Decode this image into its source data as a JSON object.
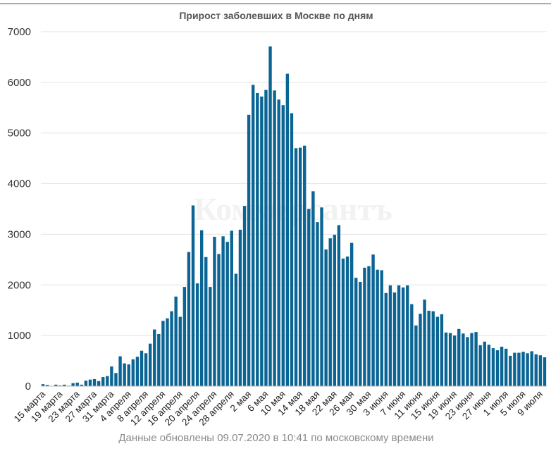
{
  "chart_data": {
    "type": "bar",
    "title": "Прирост заболевших в Москве по дням",
    "footer": "Данные обновлены 09.07.2020 в 10:41 по московскому времени",
    "watermark": "Коммерсантъ",
    "ylim": [
      0,
      7000
    ],
    "yticks": [
      0,
      1000,
      2000,
      3000,
      4000,
      5000,
      6000,
      7000
    ],
    "x_tick_labels": [
      "15 марта",
      "19 марта",
      "23 марта",
      "27 марта",
      "31 марта",
      "4 апреля",
      "8 апреля",
      "12 апреля",
      "16 апреля",
      "20 апреля",
      "24 апреля",
      "28 апреля",
      "2 мая",
      "6 мая",
      "10 мая",
      "14 мая",
      "18 мая",
      "22 мая",
      "26 мая",
      "30 мая",
      "3 июня",
      "7 июня",
      "11 июня",
      "15 июня",
      "19 июня",
      "23 июня",
      "27 июня",
      "1 июля",
      "5 июля",
      "9 июля"
    ],
    "tick_every": 4,
    "bar_color": "#0a6494",
    "grid": true,
    "values": [
      40,
      25,
      5,
      30,
      15,
      30,
      10,
      60,
      70,
      30,
      110,
      130,
      140,
      100,
      180,
      200,
      390,
      260,
      590,
      450,
      430,
      530,
      580,
      700,
      650,
      840,
      1120,
      1030,
      1290,
      1340,
      1480,
      1770,
      1370,
      1960,
      2650,
      3570,
      2030,
      3080,
      2550,
      1960,
      2950,
      2610,
      2960,
      2850,
      3070,
      2220,
      3090,
      3560,
      5360,
      5950,
      5790,
      5720,
      5850,
      6710,
      5840,
      5660,
      5550,
      6170,
      5390,
      4700,
      4710,
      4750,
      3500,
      3850,
      3240,
      3530,
      2700,
      2920,
      2990,
      3180,
      2520,
      2560,
      2830,
      2140,
      2060,
      2340,
      2370,
      2600,
      2300,
      2290,
      1840,
      1990,
      1850,
      1990,
      1950,
      1990,
      1620,
      1200,
      1430,
      1710,
      1490,
      1480,
      1370,
      1420,
      1060,
      1050,
      1000,
      1130,
      1040,
      970,
      1050,
      1070,
      810,
      880,
      820,
      750,
      710,
      780,
      740,
      600,
      660,
      660,
      680,
      650,
      690,
      630,
      610,
      570
    ]
  }
}
